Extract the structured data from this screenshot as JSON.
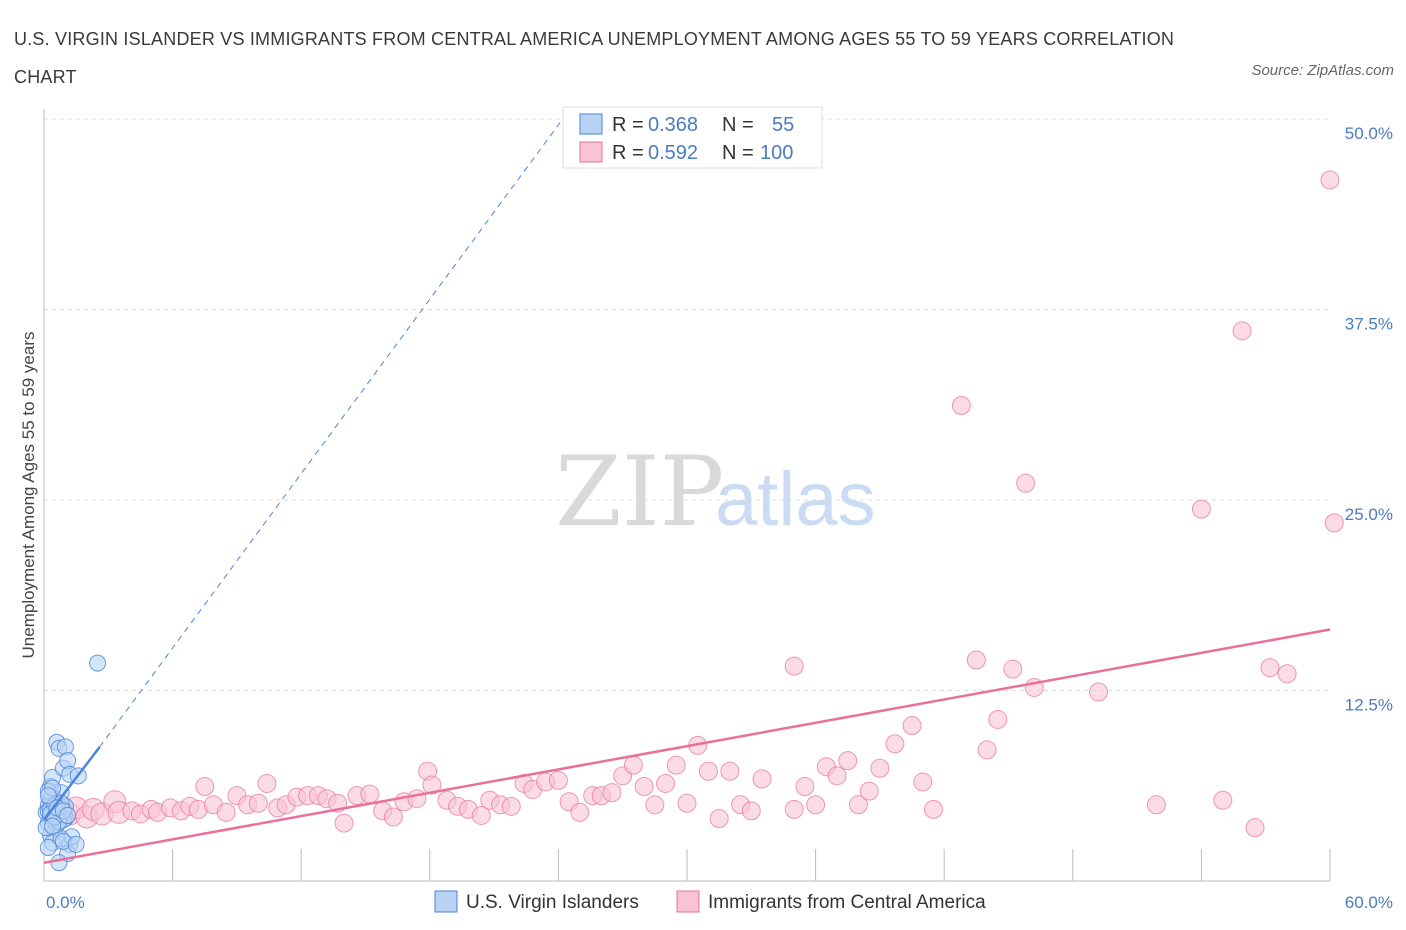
{
  "title": "U.S. VIRGIN ISLANDER VS IMMIGRANTS FROM CENTRAL AMERICA UNEMPLOYMENT AMONG AGES 55 TO 59 YEARS CORRELATION CHART",
  "source": "Source: ZipAtlas.com",
  "watermark": {
    "zip": "ZIP",
    "atlas": "atlas"
  },
  "colors": {
    "blue": "#4a86d8",
    "blue_fill": "#b9d3f5",
    "pink": "#e8709a",
    "pink_fill": "#f8c3d4",
    "tick_text": "#4a7cc0"
  },
  "legend": {
    "rows": [
      {
        "r_label": "R =",
        "r_value": "0.368",
        "n_label": "N =",
        "n_value": "55"
      },
      {
        "r_label": "R =",
        "r_value": "0.592",
        "n_label": "N =",
        "n_value": "100"
      }
    ]
  },
  "bottom_legend": [
    "U.S. Virgin Islanders",
    "Immigrants from Central America"
  ],
  "chart_data": {
    "type": "scatter",
    "ylabel": "Unemployment Among Ages 55 to 59 years",
    "xlim": [
      0,
      60
    ],
    "ylim": [
      0,
      50
    ],
    "x_tick_labels": [
      "0.0%",
      "60.0%"
    ],
    "y_tick_labels": [
      "12.5%",
      "25.0%",
      "37.5%",
      "50.0%"
    ],
    "y_ticks": [
      12.5,
      25.0,
      37.5,
      50.0
    ],
    "grid": true,
    "series": [
      {
        "name": "U.S. Virgin Islanders",
        "color": "blue",
        "points": [
          [
            0.1,
            4.5
          ],
          [
            0.2,
            5.0
          ],
          [
            0.3,
            4.2
          ],
          [
            0.4,
            5.5
          ],
          [
            0.5,
            4.8
          ],
          [
            0.2,
            3.8
          ],
          [
            0.3,
            6.2
          ],
          [
            0.4,
            6.8
          ],
          [
            0.5,
            3.2
          ],
          [
            0.6,
            5.2
          ],
          [
            0.7,
            4.4
          ],
          [
            0.8,
            5.8
          ],
          [
            0.3,
            3.0
          ],
          [
            0.4,
            2.5
          ],
          [
            0.5,
            4.0
          ],
          [
            0.6,
            9.1
          ],
          [
            0.7,
            8.7
          ],
          [
            0.8,
            2.8
          ],
          [
            0.9,
            7.4
          ],
          [
            1.0,
            8.8
          ],
          [
            1.1,
            7.9
          ],
          [
            1.2,
            7.0
          ],
          [
            1.0,
            4.1
          ],
          [
            1.2,
            2.4
          ],
          [
            1.3,
            2.9
          ],
          [
            1.1,
            1.8
          ],
          [
            0.9,
            2.6
          ],
          [
            0.7,
            1.2
          ],
          [
            1.5,
            2.4
          ],
          [
            1.6,
            6.9
          ],
          [
            2.5,
            14.3
          ],
          [
            0.2,
            4.6
          ],
          [
            0.3,
            5.3
          ],
          [
            0.5,
            4.9
          ],
          [
            0.6,
            3.7
          ],
          [
            0.8,
            4.3
          ],
          [
            0.4,
            4.1
          ],
          [
            0.2,
            5.9
          ],
          [
            0.3,
            4.7
          ],
          [
            0.6,
            4.5
          ],
          [
            0.9,
            4.0
          ],
          [
            1.0,
            4.9
          ],
          [
            0.1,
            3.5
          ],
          [
            0.2,
            2.2
          ],
          [
            0.4,
            6.1
          ],
          [
            0.5,
            5.0
          ],
          [
            0.7,
            3.9
          ],
          [
            0.3,
            4.4
          ],
          [
            0.5,
            4.2
          ],
          [
            0.8,
            5.1
          ],
          [
            0.2,
            5.6
          ],
          [
            0.4,
            3.6
          ],
          [
            0.6,
            4.8
          ],
          [
            0.9,
            4.6
          ],
          [
            1.1,
            4.3
          ]
        ],
        "trend": {
          "x": [
            0,
            2.6
          ],
          "y": [
            4.0,
            8.8
          ],
          "extended": {
            "x": [
              2.6,
              24.2
            ],
            "y": [
              8.8,
              50.0
            ]
          }
        }
      },
      {
        "name": "Immigrants from Central America",
        "color": "pink",
        "points": [
          [
            0.8,
            4.6
          ],
          [
            1.2,
            4.4
          ],
          [
            1.5,
            4.8
          ],
          [
            2.0,
            4.2
          ],
          [
            2.3,
            4.7
          ],
          [
            2.7,
            4.4
          ],
          [
            3.3,
            5.2
          ],
          [
            3.5,
            4.5
          ],
          [
            4.1,
            4.6
          ],
          [
            4.5,
            4.4
          ],
          [
            5.0,
            4.7
          ],
          [
            5.3,
            4.5
          ],
          [
            5.9,
            4.8
          ],
          [
            6.4,
            4.6
          ],
          [
            6.8,
            4.9
          ],
          [
            7.2,
            4.7
          ],
          [
            7.5,
            6.2
          ],
          [
            7.9,
            5.0
          ],
          [
            8.5,
            4.5
          ],
          [
            9.0,
            5.6
          ],
          [
            9.5,
            5.0
          ],
          [
            10.0,
            5.1
          ],
          [
            10.4,
            6.4
          ],
          [
            10.9,
            4.8
          ],
          [
            11.3,
            5.0
          ],
          [
            11.8,
            5.5
          ],
          [
            12.3,
            5.6
          ],
          [
            12.8,
            5.6
          ],
          [
            13.2,
            5.4
          ],
          [
            13.7,
            5.1
          ],
          [
            14.0,
            3.8
          ],
          [
            14.6,
            5.6
          ],
          [
            15.2,
            5.7
          ],
          [
            15.8,
            4.6
          ],
          [
            16.3,
            4.2
          ],
          [
            16.8,
            5.2
          ],
          [
            17.4,
            5.4
          ],
          [
            17.9,
            7.2
          ],
          [
            18.1,
            6.3
          ],
          [
            18.8,
            5.3
          ],
          [
            19.3,
            4.9
          ],
          [
            19.8,
            4.7
          ],
          [
            20.4,
            4.3
          ],
          [
            20.8,
            5.3
          ],
          [
            21.3,
            5.0
          ],
          [
            21.8,
            4.9
          ],
          [
            22.4,
            6.4
          ],
          [
            22.8,
            6.0
          ],
          [
            23.4,
            6.5
          ],
          [
            24.0,
            6.6
          ],
          [
            24.5,
            5.2
          ],
          [
            25.0,
            4.5
          ],
          [
            25.6,
            5.6
          ],
          [
            26.0,
            5.6
          ],
          [
            26.5,
            5.8
          ],
          [
            27.0,
            6.9
          ],
          [
            27.5,
            7.6
          ],
          [
            28.0,
            6.2
          ],
          [
            28.5,
            5.0
          ],
          [
            29.0,
            6.4
          ],
          [
            29.5,
            7.6
          ],
          [
            30.0,
            5.1
          ],
          [
            30.5,
            8.9
          ],
          [
            31.0,
            7.2
          ],
          [
            31.5,
            4.1
          ],
          [
            32.0,
            7.2
          ],
          [
            32.5,
            5.0
          ],
          [
            33.0,
            4.6
          ],
          [
            33.5,
            6.7
          ],
          [
            35.0,
            4.7
          ],
          [
            35.5,
            6.2
          ],
          [
            36.0,
            5.0
          ],
          [
            36.5,
            7.5
          ],
          [
            37.0,
            6.9
          ],
          [
            37.5,
            7.9
          ],
          [
            38.0,
            5.0
          ],
          [
            38.5,
            5.9
          ],
          [
            39.0,
            7.4
          ],
          [
            39.7,
            9.0
          ],
          [
            40.5,
            10.2
          ],
          [
            41.0,
            6.5
          ],
          [
            41.5,
            4.7
          ],
          [
            42.8,
            31.2
          ],
          [
            43.5,
            14.5
          ],
          [
            44.0,
            8.6
          ],
          [
            44.5,
            10.6
          ],
          [
            45.2,
            13.9
          ],
          [
            45.8,
            26.1
          ],
          [
            46.2,
            12.7
          ],
          [
            49.2,
            12.4
          ],
          [
            35.0,
            14.1
          ],
          [
            51.9,
            5.0
          ],
          [
            54.0,
            24.4
          ],
          [
            55.9,
            36.1
          ],
          [
            56.5,
            3.5
          ],
          [
            57.2,
            14.0
          ],
          [
            58.0,
            13.6
          ],
          [
            60.0,
            46.0
          ],
          [
            60.2,
            23.5
          ],
          [
            55.0,
            5.3
          ]
        ],
        "trend": {
          "x": [
            0,
            60
          ],
          "y": [
            1.2,
            16.5
          ]
        }
      }
    ]
  }
}
